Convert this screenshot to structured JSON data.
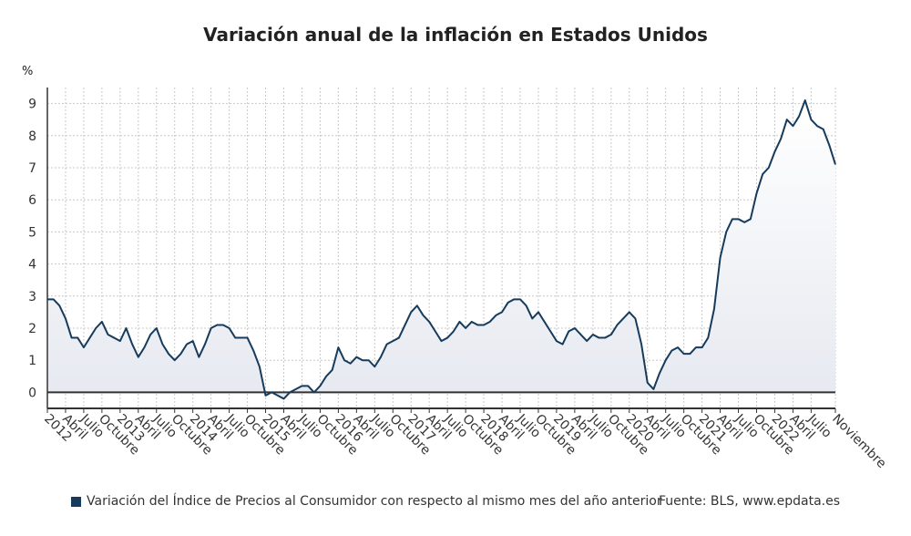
{
  "chart_data": {
    "type": "area",
    "title": "Variación anual de la inflación en Estados Unidos",
    "ylabel": "%",
    "ylim": [
      -0.5,
      9.5
    ],
    "yticks": [
      0,
      1,
      2,
      3,
      4,
      5,
      6,
      7,
      8,
      9
    ],
    "x_start": "2012-01",
    "x_end": "2022-11",
    "grid": true,
    "line_color": "#163b5c",
    "fill_color": "#e6e9f0",
    "series": [
      {
        "name": "Variación del Índice de Precios al Consumidor con respecto al mismo mes del año anterior",
        "values": [
          2.9,
          2.9,
          2.7,
          2.3,
          1.7,
          1.7,
          1.4,
          1.7,
          2.0,
          2.2,
          1.8,
          1.7,
          1.6,
          2.0,
          1.5,
          1.1,
          1.4,
          1.8,
          2.0,
          1.5,
          1.2,
          1.0,
          1.2,
          1.5,
          1.6,
          1.1,
          1.5,
          2.0,
          2.1,
          2.1,
          2.0,
          1.7,
          1.7,
          1.7,
          1.3,
          0.8,
          -0.1,
          0.0,
          -0.1,
          -0.2,
          0.0,
          0.1,
          0.2,
          0.2,
          0.0,
          0.2,
          0.5,
          0.7,
          1.4,
          1.0,
          0.9,
          1.1,
          1.0,
          1.0,
          0.8,
          1.1,
          1.5,
          1.6,
          1.7,
          2.1,
          2.5,
          2.7,
          2.4,
          2.2,
          1.9,
          1.6,
          1.7,
          1.9,
          2.2,
          2.0,
          2.2,
          2.1,
          2.1,
          2.2,
          2.4,
          2.5,
          2.8,
          2.9,
          2.9,
          2.7,
          2.3,
          2.5,
          2.2,
          1.9,
          1.6,
          1.5,
          1.9,
          2.0,
          1.8,
          1.6,
          1.8,
          1.7,
          1.7,
          1.8,
          2.1,
          2.3,
          2.5,
          2.3,
          1.5,
          0.3,
          0.1,
          0.6,
          1.0,
          1.3,
          1.4,
          1.2,
          1.2,
          1.4,
          1.4,
          1.7,
          2.6,
          4.2,
          5.0,
          5.4,
          5.4,
          5.3,
          5.4,
          6.2,
          6.8,
          7.0,
          7.5,
          7.9,
          8.5,
          8.3,
          8.6,
          9.1,
          8.5,
          8.3,
          8.2,
          7.7,
          7.1
        ]
      }
    ],
    "x_tick_labels": [
      "2012",
      "Abril",
      "Julio",
      "Octubre",
      "2013",
      "Abril",
      "Julio",
      "Octubre",
      "2014",
      "Abril",
      "Julio",
      "Octubre",
      "2015",
      "Abril",
      "Julio",
      "Octubre",
      "2016",
      "Abril",
      "Julio",
      "Octubre",
      "2017",
      "Abril",
      "Julio",
      "Octubre",
      "2018",
      "Abril",
      "Julio",
      "Octubre",
      "2019",
      "Abril",
      "Julio",
      "Octubre",
      "2020",
      "Abril",
      "Julio",
      "Octubre",
      "2021",
      "Abril",
      "Julio",
      "Octubre",
      "2022",
      "Abril",
      "Julio",
      "Noviembre"
    ],
    "legend_placement": "bottom-left"
  },
  "legend": {
    "label": "Variación del Índice de Precios al Consumidor con respecto al mismo mes del año anterior"
  },
  "source": "Fuente: BLS, www.epdata.es"
}
